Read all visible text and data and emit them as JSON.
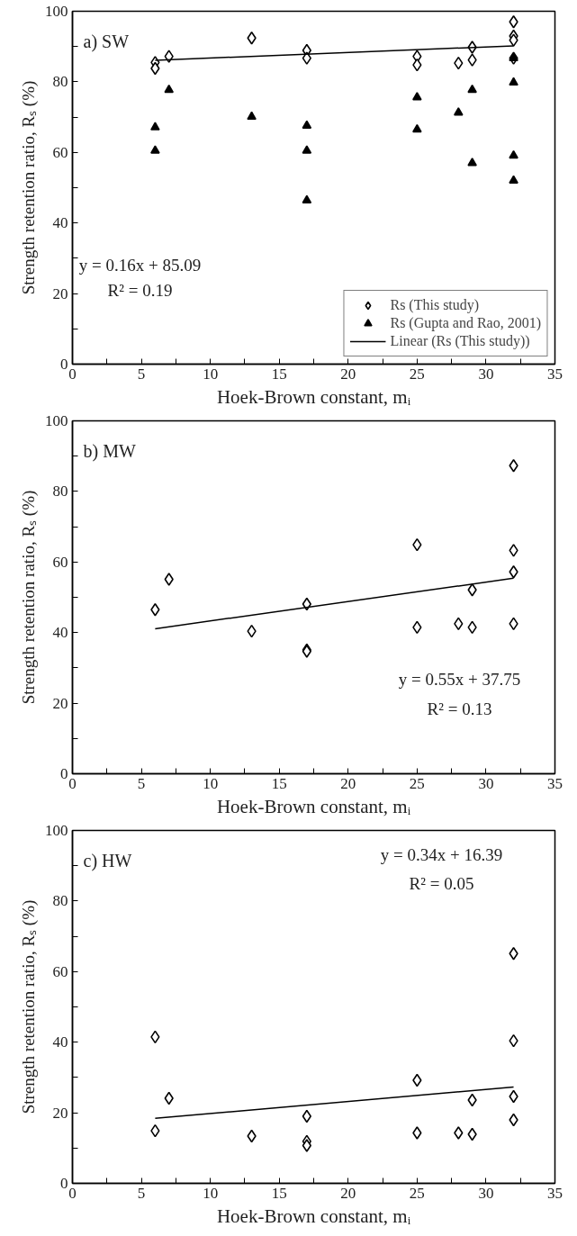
{
  "chart_data": [
    {
      "type": "scatter",
      "title": "a) SW",
      "xlabel": "Hoek-Brown constant, mᵢ",
      "ylabel": "Strength retention ratio, Rₛ (%)",
      "xlim": [
        0,
        35
      ],
      "ylim": [
        0,
        100
      ],
      "xticks": [
        0,
        {
          "value": 2.5,
          "label": null
        },
        5,
        {
          "value": 7.5,
          "label": null
        },
        10,
        {
          "value": 12.5,
          "label": null
        },
        15,
        {
          "value": 17.5,
          "label": null
        },
        20,
        {
          "value": 22.5,
          "label": null
        },
        25,
        {
          "value": 27.5,
          "label": null
        },
        30,
        {
          "value": 32.5,
          "label": null
        },
        35
      ],
      "yticks": [
        0,
        {
          "value": 10,
          "label": null
        },
        20,
        {
          "value": 30,
          "label": null
        },
        40,
        {
          "value": 50,
          "label": null
        },
        60,
        {
          "value": 70,
          "label": null
        },
        80,
        {
          "value": 90,
          "label": null
        },
        100
      ],
      "grid": false,
      "legend": "bottom right",
      "annotations": [
        "y = 0.16x + 85.09",
        "R² = 0.19"
      ],
      "series": [
        {
          "name": "Rs (This study)",
          "marker": "diamond",
          "color": "#000000",
          "x": [
            6,
            6,
            7,
            13,
            17,
            17,
            25,
            25,
            28,
            29,
            29,
            32,
            32,
            32,
            32
          ],
          "values": [
            85.5,
            83.8,
            87.2,
            92.4,
            88.9,
            86.7,
            87.2,
            84.8,
            85.3,
            89.8,
            86.2,
            97,
            93,
            91.8,
            86.7
          ]
        },
        {
          "name": "Rs (Gupta and Rao, 2001)",
          "marker": "triangle",
          "color": "#000000",
          "x": [
            6,
            6,
            7,
            13,
            17,
            17,
            17,
            25,
            25,
            28,
            29,
            29,
            32,
            32,
            32,
            32
          ],
          "values": [
            67.1,
            60.5,
            77.7,
            70.1,
            67.6,
            60.5,
            46.4,
            75.6,
            66.5,
            71.3,
            77.7,
            57,
            86.7,
            79.8,
            59.1,
            52
          ]
        },
        {
          "name": "Linear (Rs (This study))",
          "type": "line",
          "line_style": "solid",
          "color": "#000000",
          "x": [
            6,
            32
          ],
          "values": [
            86.1,
            90.2
          ]
        }
      ]
    },
    {
      "type": "scatter",
      "title": "b) MW",
      "xlabel": "Hoek-Brown constant, mᵢ",
      "ylabel": "Strength retention ratio, Rₛ (%)",
      "xlim": [
        0,
        35
      ],
      "ylim": [
        0,
        100
      ],
      "xticks": [
        0,
        {
          "value": 2.5,
          "label": null
        },
        5,
        {
          "value": 7.5,
          "label": null
        },
        10,
        {
          "value": 12.5,
          "label": null
        },
        15,
        {
          "value": 17.5,
          "label": null
        },
        20,
        {
          "value": 22.5,
          "label": null
        },
        25,
        {
          "value": 27.5,
          "label": null
        },
        30,
        {
          "value": 32.5,
          "label": null
        },
        35
      ],
      "yticks": [
        0,
        {
          "value": 10,
          "label": null
        },
        20,
        {
          "value": 30,
          "label": null
        },
        40,
        {
          "value": 50,
          "label": null
        },
        60,
        {
          "value": 70,
          "label": null
        },
        80,
        {
          "value": 90,
          "label": null
        },
        100
      ],
      "grid": false,
      "annotations": [
        "y = 0.55x + 37.75",
        "R² = 0.13"
      ],
      "series": [
        {
          "marker": "diamond",
          "color": "#000000",
          "x": [
            6,
            7,
            13,
            17,
            17,
            17,
            25,
            25,
            28,
            29,
            29,
            32,
            32,
            32,
            32
          ],
          "values": [
            46.5,
            55.1,
            40.4,
            48.1,
            35.1,
            34.7,
            64.9,
            41.5,
            42.5,
            52.1,
            41.5,
            87.3,
            63.3,
            57.2,
            42.5
          ]
        },
        {
          "type": "line",
          "line_style": "solid",
          "color": "#000000",
          "x": [
            6,
            32
          ],
          "values": [
            41.1,
            55.4
          ]
        }
      ]
    },
    {
      "type": "scatter",
      "title": "c) HW",
      "xlabel": "Hoek-Brown constant, mᵢ",
      "ylabel": "Strength retention ratio, Rₛ (%)",
      "xlim": [
        0,
        35
      ],
      "ylim": [
        0,
        100
      ],
      "xticks": [
        0,
        {
          "value": 2.5,
          "label": null
        },
        5,
        {
          "value": 7.5,
          "label": null
        },
        10,
        {
          "value": 12.5,
          "label": null
        },
        15,
        {
          "value": 17.5,
          "label": null
        },
        20,
        {
          "value": 22.5,
          "label": null
        },
        25,
        {
          "value": 27.5,
          "label": null
        },
        30,
        {
          "value": 32.5,
          "label": null
        },
        35
      ],
      "yticks": [
        0,
        {
          "value": 10,
          "label": null
        },
        20,
        {
          "value": 30,
          "label": null
        },
        40,
        {
          "value": 50,
          "label": null
        },
        60,
        {
          "value": 70,
          "label": null
        },
        80,
        {
          "value": 90,
          "label": null
        },
        100
      ],
      "grid": false,
      "annotations": [
        "y = 0.34x + 16.39",
        "R² = 0.05"
      ],
      "series": [
        {
          "marker": "diamond",
          "color": "#000000",
          "x": [
            6,
            6,
            7,
            13,
            17,
            17,
            17,
            25,
            25,
            28,
            29,
            29,
            32,
            32,
            32,
            32
          ],
          "values": [
            41.5,
            14.9,
            24.1,
            13.4,
            19.0,
            11.9,
            10.7,
            29.2,
            14.3,
            14.3,
            23.6,
            13.9,
            65.1,
            40.4,
            24.6,
            18.0
          ]
        },
        {
          "type": "line",
          "line_style": "solid",
          "color": "#000000",
          "x": [
            6,
            32
          ],
          "values": [
            18.4,
            27.3
          ]
        }
      ]
    }
  ]
}
